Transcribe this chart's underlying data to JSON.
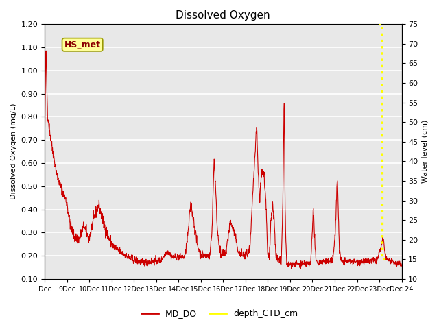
{
  "title": "Dissolved Oxygen",
  "ylabel_left": "Dissolved Oxygen (mg/L)",
  "ylabel_right": "Water level (cm)",
  "ylim_left": [
    0.1,
    1.2
  ],
  "ylim_right": [
    10,
    75
  ],
  "yticks_left": [
    0.1,
    0.2,
    0.3,
    0.4,
    0.5,
    0.6,
    0.7,
    0.8,
    0.9,
    1.0,
    1.1,
    1.2
  ],
  "yticks_right": [
    10,
    15,
    20,
    25,
    30,
    35,
    40,
    45,
    50,
    55,
    60,
    65,
    70,
    75
  ],
  "xtick_labels": [
    "Dec",
    "9Dec",
    "10Dec",
    "11Dec",
    "12Dec",
    "13Dec",
    "14Dec",
    "15Dec",
    "16Dec",
    "17Dec",
    "18Dec",
    "19Dec",
    "20Dec",
    "21Dec",
    "22Dec",
    "23Dec",
    "Dec 24"
  ],
  "md_do_color": "#cc0000",
  "depth_color": "#ffff00",
  "background_color": "#e8e8e8",
  "grid_color": "#ffffff",
  "annotation_text": "HS_met",
  "annotation_bg": "#ffff99",
  "annotation_border": "#999900"
}
